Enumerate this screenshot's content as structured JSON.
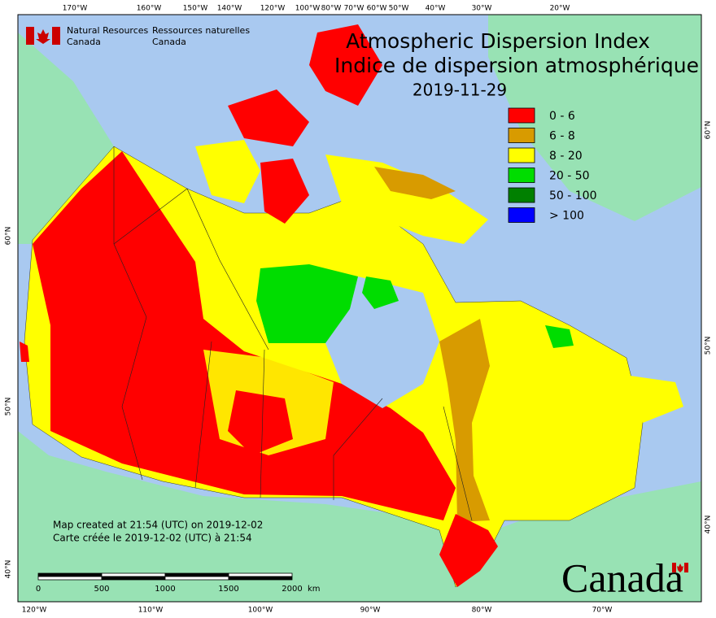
{
  "header": {
    "org_en": "Natural Resources",
    "org_en2": "Canada",
    "org_fr": "Ressources naturelles",
    "org_fr2": "Canada"
  },
  "title": {
    "en": "Atmospheric Dispersion Index",
    "fr": "Indice de dispersion atmosphérique",
    "date": "2019-11-29"
  },
  "legend": [
    {
      "label": "0 - 6",
      "color": "#ff0000"
    },
    {
      "label": "6 - 8",
      "color": "#d89b00"
    },
    {
      "label": "8 - 20",
      "color": "#ffff00"
    },
    {
      "label": "20 - 50",
      "color": "#00dd00"
    },
    {
      "label": "50 - 100",
      "color": "#008000"
    },
    {
      "label": "> 100",
      "color": "#0000ff"
    }
  ],
  "graticule": {
    "top": [
      "170°W",
      "160°W",
      "150°W",
      "140°W",
      "120°W",
      "100°W",
      "80°W",
      "70°W",
      "60°W",
      "50°W",
      "40°W",
      "30°W",
      "20°W"
    ],
    "bottom": [
      "120°W",
      "110°W",
      "100°W",
      "90°W",
      "80°W",
      "70°W"
    ],
    "left": [
      "60°N",
      "50°N",
      "40°N"
    ],
    "right": [
      "60°N",
      "50°N",
      "40°N"
    ]
  },
  "scale_bar": {
    "ticks": [
      "0",
      "500",
      "1000",
      "1500",
      "2000"
    ],
    "unit": "km"
  },
  "footer": {
    "created_en": "Map created at 21:54 (UTC) on 2019-12-02",
    "created_fr": "Carte créée le 2019-12-02 (UTC) à 21:54"
  },
  "wordmark": "Canada"
}
